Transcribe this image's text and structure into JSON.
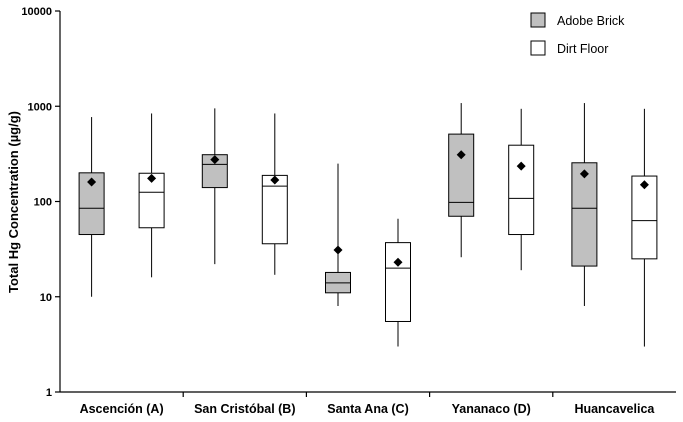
{
  "chart_data": {
    "type": "box",
    "ylabel": "Total Hg Concentration (µg/g)",
    "yscale": "log",
    "ylim": [
      1,
      10000
    ],
    "yticks": [
      1,
      10,
      100,
      1000,
      10000
    ],
    "ytick_labels": [
      "1",
      "10",
      "100",
      "1000",
      "10000"
    ],
    "categories": [
      "Ascención (A)",
      "San Cristóbal (B)",
      "Santa Ana (C)",
      "Yananaco (D)",
      "Huancavelica"
    ],
    "legend_position": "top-right",
    "series": [
      {
        "name": "Adobe Brick",
        "fill": "#c0c0c0",
        "boxes": [
          {
            "whisker_low": 10,
            "q1": 45,
            "median": 85,
            "q3": 200,
            "whisker_high": 770,
            "mean": 160
          },
          {
            "whisker_low": 22,
            "q1": 140,
            "median": 245,
            "q3": 310,
            "whisker_high": 950,
            "mean": 275
          },
          {
            "whisker_low": 8,
            "q1": 11,
            "median": 14,
            "q3": 18,
            "whisker_high": 250,
            "mean": 31
          },
          {
            "whisker_low": 26,
            "q1": 70,
            "median": 98,
            "q3": 510,
            "whisker_high": 1080,
            "mean": 310
          },
          {
            "whisker_low": 8,
            "q1": 21,
            "median": 85,
            "q3": 255,
            "whisker_high": 1080,
            "mean": 195
          }
        ]
      },
      {
        "name": "Dirt Floor",
        "fill": "#ffffff",
        "boxes": [
          {
            "whisker_low": 16,
            "q1": 53,
            "median": 125,
            "q3": 198,
            "whisker_high": 840,
            "mean": 175
          },
          {
            "whisker_low": 17,
            "q1": 36,
            "median": 145,
            "q3": 188,
            "whisker_high": 840,
            "mean": 168
          },
          {
            "whisker_low": 3,
            "q1": 5.5,
            "median": 20,
            "q3": 37,
            "whisker_high": 66,
            "mean": 23
          },
          {
            "whisker_low": 19,
            "q1": 45,
            "median": 108,
            "q3": 390,
            "whisker_high": 940,
            "mean": 235
          },
          {
            "whisker_low": 3,
            "q1": 25,
            "median": 63,
            "q3": 185,
            "whisker_high": 940,
            "mean": 150
          }
        ]
      }
    ]
  }
}
